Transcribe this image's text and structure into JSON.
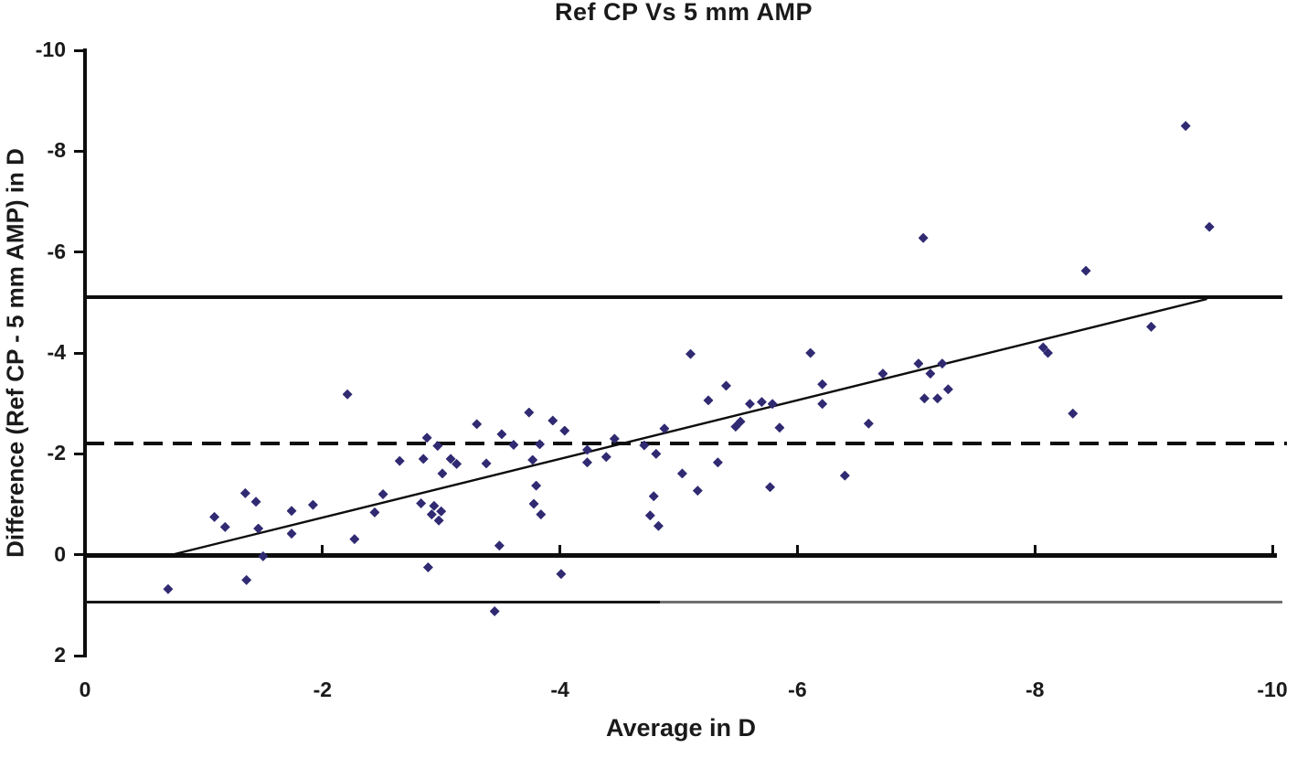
{
  "title": "Ref CP Vs 5 mm AMP",
  "x_axis": {
    "label": "Average in D",
    "ticks": [
      "0",
      "-2",
      "-4",
      "-6",
      "-8",
      "-10"
    ],
    "tick_values": [
      0,
      -2,
      -4,
      -6,
      -8,
      -10
    ]
  },
  "y_axis": {
    "label": "Difference (Ref CP - 5 mm AMP) in D",
    "ticks": [
      "-10",
      "-8",
      "-6",
      "-4",
      "-2",
      "0",
      "2"
    ],
    "tick_values": [
      -10,
      -8,
      -6,
      -4,
      -2,
      0,
      2
    ]
  },
  "colors": {
    "marker": "#302a72",
    "line": "#0d0d0d",
    "lower_loa_gray": "#6f6f6f"
  },
  "chart_data": {
    "type": "scatter",
    "title": "Ref CP Vs 5 mm AMP",
    "xlabel": "Average in D",
    "ylabel": "Difference (Ref CP - 5 mm AMP) in D",
    "x_range": [
      0,
      -10
    ],
    "y_range_top_to_bottom": [
      -10,
      2
    ],
    "grid": false,
    "legend": false,
    "mean_difference_line": -2.21,
    "upper_limit_line": -5.11,
    "lower_limit_line": 0.93,
    "regression_line": {
      "x1": -0.68,
      "y1": 0.03,
      "x2": -9.45,
      "y2": -5.07
    },
    "points": [
      [
        -0.7,
        0.68
      ],
      [
        -1.09,
        -0.75
      ],
      [
        -1.18,
        -0.55
      ],
      [
        -1.36,
        0.5
      ],
      [
        -1.35,
        -1.22
      ],
      [
        -1.44,
        -1.05
      ],
      [
        -1.46,
        -0.52
      ],
      [
        -1.5,
        0.03
      ],
      [
        -1.74,
        -0.87
      ],
      [
        -1.74,
        -0.42
      ],
      [
        -1.92,
        -0.99
      ],
      [
        -2.21,
        -3.18
      ],
      [
        -2.27,
        -0.31
      ],
      [
        -2.44,
        -0.84
      ],
      [
        -2.51,
        -1.2
      ],
      [
        -2.65,
        -1.86
      ],
      [
        -2.83,
        -1.02
      ],
      [
        -2.85,
        -1.9
      ],
      [
        -2.88,
        -2.32
      ],
      [
        -2.89,
        0.25
      ],
      [
        -2.94,
        -0.97
      ],
      [
        -3.0,
        -0.86
      ],
      [
        -2.92,
        -0.8
      ],
      [
        -2.98,
        -0.68
      ],
      [
        -2.97,
        -2.16
      ],
      [
        -3.01,
        -1.61
      ],
      [
        -3.08,
        -1.9
      ],
      [
        -3.13,
        -1.8
      ],
      [
        -3.3,
        -2.59
      ],
      [
        -3.38,
        -1.81
      ],
      [
        -3.45,
        1.12
      ],
      [
        -3.49,
        -0.18
      ],
      [
        -3.51,
        -2.39
      ],
      [
        -3.61,
        -2.18
      ],
      [
        -3.74,
        -2.82
      ],
      [
        -3.77,
        -1.88
      ],
      [
        -3.8,
        -1.37
      ],
      [
        -3.78,
        -1.01
      ],
      [
        -3.84,
        -0.8
      ],
      [
        -3.83,
        -2.19
      ],
      [
        -3.94,
        -2.66
      ],
      [
        -4.01,
        0.38
      ],
      [
        -4.04,
        -2.46
      ],
      [
        -4.23,
        -2.08
      ],
      [
        -4.23,
        -1.83
      ],
      [
        -4.39,
        -1.94
      ],
      [
        -4.46,
        -2.3
      ],
      [
        -4.71,
        -2.17
      ],
      [
        -4.76,
        -0.78
      ],
      [
        -4.83,
        -0.57
      ],
      [
        -4.81,
        -2.0
      ],
      [
        -4.88,
        -2.5
      ],
      [
        -4.79,
        -1.16
      ],
      [
        -5.03,
        -1.61
      ],
      [
        -5.1,
        -3.98
      ],
      [
        -5.16,
        -1.27
      ],
      [
        -5.25,
        -3.06
      ],
      [
        -5.33,
        -1.83
      ],
      [
        -5.4,
        -3.35
      ],
      [
        -5.48,
        -2.54
      ],
      [
        -5.52,
        -2.64
      ],
      [
        -5.6,
        -2.99
      ],
      [
        -5.7,
        -3.03
      ],
      [
        -5.77,
        -1.34
      ],
      [
        -5.79,
        -2.99
      ],
      [
        -5.85,
        -2.52
      ],
      [
        -6.11,
        -4.0
      ],
      [
        -6.21,
        -3.38
      ],
      [
        -6.21,
        -2.99
      ],
      [
        -6.4,
        -1.57
      ],
      [
        -6.6,
        -2.6
      ],
      [
        -6.72,
        -3.59
      ],
      [
        -7.02,
        -3.79
      ],
      [
        -7.06,
        -6.28
      ],
      [
        -7.07,
        -3.1
      ],
      [
        -7.12,
        -3.59
      ],
      [
        -7.18,
        -3.1
      ],
      [
        -7.22,
        -3.79
      ],
      [
        -7.27,
        -3.28
      ],
      [
        -8.07,
        -4.11
      ],
      [
        -8.11,
        -4.0
      ],
      [
        -8.32,
        -2.8
      ],
      [
        -8.43,
        -5.63
      ],
      [
        -8.98,
        -4.52
      ],
      [
        -9.27,
        -8.5
      ],
      [
        -9.47,
        -6.5
      ]
    ]
  }
}
